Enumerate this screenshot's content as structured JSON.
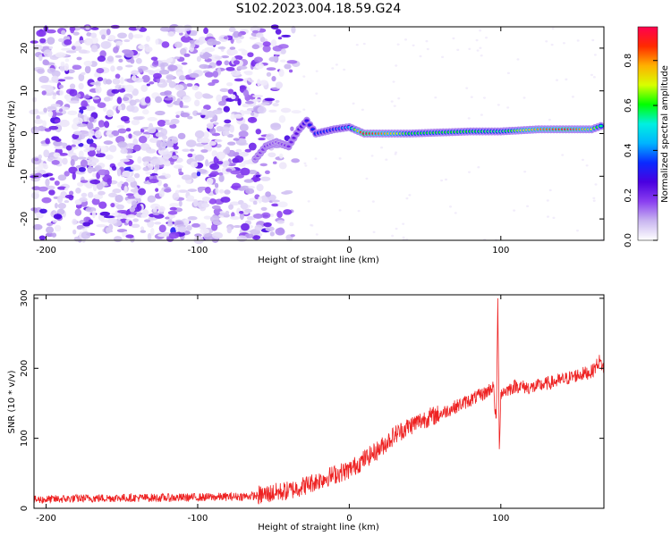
{
  "title": "S102.2023.004.18.59.G24",
  "chart_data": [
    {
      "type": "heatmap",
      "xlabel": "Height of straight line (km)",
      "ylabel": "Frequency (Hz)",
      "xlim": [
        -208,
        168
      ],
      "ylim": [
        -25,
        25
      ],
      "xticks": [
        -200,
        -100,
        0,
        100
      ],
      "yticks": [
        -20,
        -10,
        0,
        10,
        20
      ],
      "colorbar": {
        "label": "Normalized spectral amplitude",
        "range": [
          0,
          0.95
        ],
        "ticks": [
          0.0,
          0.2,
          0.4,
          0.6,
          0.8
        ],
        "colormap": [
          "#ffffff",
          "#c9b6f0",
          "#8a3ff0",
          "#4a00e0",
          "#0a2aff",
          "#00b4ff",
          "#00f0e0",
          "#00ff00",
          "#d8ff00",
          "#ffb000",
          "#ff2a00",
          "#ff0050"
        ]
      },
      "signal_track": [
        {
          "x": -62,
          "y": -6,
          "v": 0.15
        },
        {
          "x": -55,
          "y": -3,
          "v": 0.2
        },
        {
          "x": -48,
          "y": -2,
          "v": 0.15
        },
        {
          "x": -40,
          "y": -3,
          "v": 0.2
        },
        {
          "x": -33,
          "y": 1,
          "v": 0.25
        },
        {
          "x": -28,
          "y": 3,
          "v": 0.3
        },
        {
          "x": -22,
          "y": 0,
          "v": 0.35
        },
        {
          "x": -10,
          "y": 1,
          "v": 0.35
        },
        {
          "x": 0,
          "y": 1.5,
          "v": 0.45
        },
        {
          "x": 10,
          "y": 0,
          "v": 0.95
        },
        {
          "x": 40,
          "y": 0,
          "v": 0.6
        },
        {
          "x": 80,
          "y": 0.5,
          "v": 0.6
        },
        {
          "x": 100,
          "y": 0.5,
          "v": 0.55
        },
        {
          "x": 125,
          "y": 1,
          "v": 0.8
        },
        {
          "x": 145,
          "y": 1,
          "v": 0.9
        },
        {
          "x": 160,
          "y": 1,
          "v": 0.7
        },
        {
          "x": 168,
          "y": 2,
          "v": 0.5
        }
      ]
    },
    {
      "type": "line",
      "xlabel": "Height of straight line (km)",
      "ylabel": "SNR (10 * v/v)",
      "xlim": [
        -208,
        168
      ],
      "ylim": [
        0,
        305
      ],
      "xticks": [
        -200,
        -100,
        0,
        100
      ],
      "yticks": [
        0,
        100,
        200,
        300
      ],
      "color": "#ee2222",
      "series": [
        {
          "x": [
            -208,
            -180,
            -150,
            -120,
            -90,
            -70,
            -60,
            -50,
            -40,
            -30,
            -20,
            -10,
            0,
            10,
            20,
            30,
            40,
            50,
            60,
            70,
            80,
            90,
            95,
            97,
            98,
            99,
            100,
            105,
            110,
            120,
            130,
            140,
            150,
            160,
            165,
            168
          ],
          "y": [
            12,
            14,
            15,
            15,
            16,
            17,
            18,
            22,
            25,
            32,
            40,
            48,
            55,
            70,
            85,
            105,
            118,
            128,
            135,
            145,
            155,
            165,
            175,
            120,
            300,
            85,
            165,
            170,
            175,
            172,
            178,
            183,
            190,
            195,
            210,
            200
          ]
        }
      ]
    }
  ]
}
